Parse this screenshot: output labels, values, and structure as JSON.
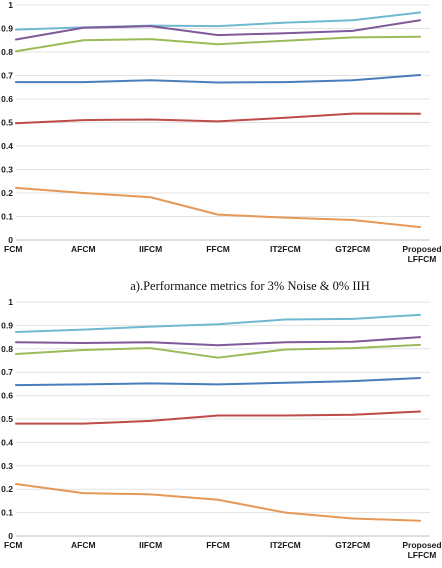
{
  "colors": {
    "background": "#ffffff",
    "grid": "#e3e3e3",
    "text": "#1a1a1a",
    "series": [
      "#70B8D0",
      "#7F5A9A",
      "#9BBB59",
      "#4A7EBB",
      "#BE4B48",
      "#E59858"
    ]
  },
  "chart_data": [
    {
      "type": "line",
      "title": "",
      "caption": "a).Performance  metrics for 3% Noise & 0% IIH",
      "xlabel": "",
      "ylabel": "",
      "ylim": [
        0,
        1
      ],
      "grid": true,
      "legend": "none",
      "categories": [
        [
          "FCM"
        ],
        [
          "AFCM"
        ],
        [
          "IIFCM"
        ],
        [
          "FFCM"
        ],
        [
          "IT2FCM"
        ],
        [
          "GT2FCM"
        ],
        [
          "Proposed",
          "LFFCM"
        ]
      ],
      "y_ticks": [
        "0",
        "0.1",
        "0.2",
        "0.3",
        "0.4",
        "0.5",
        "0.6",
        "0.7",
        "0.8",
        "0.9",
        "1"
      ],
      "series": [
        {
          "values": [
            0.895,
            0.905,
            0.912,
            0.91,
            0.925,
            0.935,
            0.968
          ]
        },
        {
          "values": [
            0.853,
            0.903,
            0.91,
            0.872,
            0.88,
            0.89,
            0.935
          ]
        },
        {
          "values": [
            0.803,
            0.85,
            0.855,
            0.833,
            0.848,
            0.862,
            0.865
          ]
        },
        {
          "values": [
            0.672,
            0.672,
            0.68,
            0.67,
            0.672,
            0.68,
            0.702
          ]
        },
        {
          "values": [
            0.497,
            0.51,
            0.513,
            0.505,
            0.52,
            0.538,
            0.537
          ]
        },
        {
          "values": [
            0.222,
            0.2,
            0.182,
            0.108,
            0.095,
            0.085,
            0.055
          ]
        }
      ]
    },
    {
      "type": "line",
      "title": "",
      "caption": "",
      "xlabel": "",
      "ylabel": "",
      "ylim": [
        0,
        1
      ],
      "grid": true,
      "legend": "none",
      "categories": [
        [
          "FCM"
        ],
        [
          "AFCM"
        ],
        [
          "IIFCM"
        ],
        [
          "FFCM"
        ],
        [
          "IT2FCM"
        ],
        [
          "GT2FCM"
        ],
        [
          "Proposed",
          "LFFCM"
        ]
      ],
      "y_ticks": [
        "0",
        "0.1",
        "0.2",
        "0.3",
        "0.4",
        "0.5",
        "0.6",
        "0.7",
        "0.8",
        "0.9",
        "1"
      ],
      "series": [
        {
          "values": [
            0.872,
            0.882,
            0.895,
            0.905,
            0.925,
            0.928,
            0.945
          ]
        },
        {
          "values": [
            0.828,
            0.825,
            0.828,
            0.815,
            0.828,
            0.83,
            0.85
          ]
        },
        {
          "values": [
            0.778,
            0.795,
            0.803,
            0.762,
            0.797,
            0.803,
            0.817
          ]
        },
        {
          "values": [
            0.645,
            0.648,
            0.652,
            0.648,
            0.655,
            0.662,
            0.675
          ]
        },
        {
          "values": [
            0.48,
            0.48,
            0.492,
            0.515,
            0.515,
            0.518,
            0.532
          ]
        },
        {
          "values": [
            0.222,
            0.183,
            0.178,
            0.155,
            0.1,
            0.075,
            0.065
          ]
        }
      ]
    }
  ]
}
